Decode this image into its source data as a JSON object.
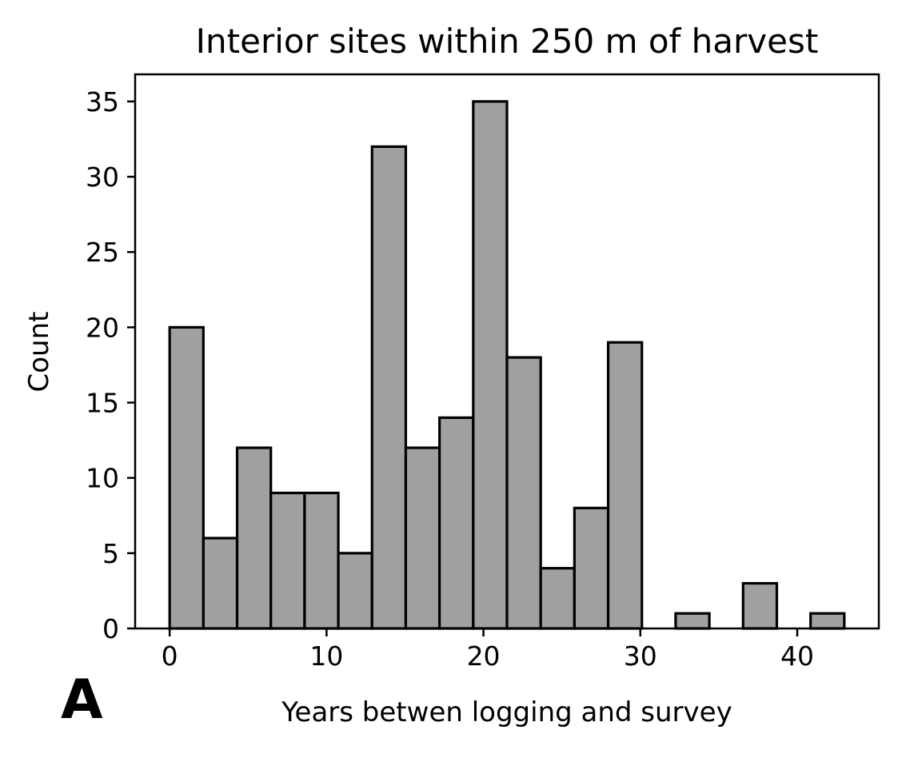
{
  "chart_data": {
    "type": "bar",
    "title": "Interior sites within 250 m of harvest",
    "xlabel": "Years betwen logging and survey",
    "ylabel": "Count",
    "panel_label": "A",
    "xlim": [
      -2.2,
      45.2
    ],
    "ylim": [
      0,
      36.8
    ],
    "xticks": [
      0,
      10,
      20,
      30,
      40
    ],
    "yticks": [
      0,
      5,
      10,
      15,
      20,
      25,
      30,
      35
    ],
    "bin_edges": [
      0,
      2.15,
      4.3,
      6.45,
      8.6,
      10.75,
      12.9,
      15.05,
      17.2,
      19.35,
      21.5,
      23.65,
      25.8,
      27.95,
      30.1,
      32.25,
      34.4,
      36.55,
      38.7,
      40.85,
      43.0
    ],
    "values": [
      20,
      6,
      12,
      9,
      9,
      5,
      32,
      12,
      14,
      35,
      18,
      4,
      8,
      19,
      0,
      1,
      0,
      3,
      0,
      1
    ],
    "bar_color": "#a0a0a0",
    "edge_color": "#000000",
    "grid": false,
    "legend": false
  }
}
